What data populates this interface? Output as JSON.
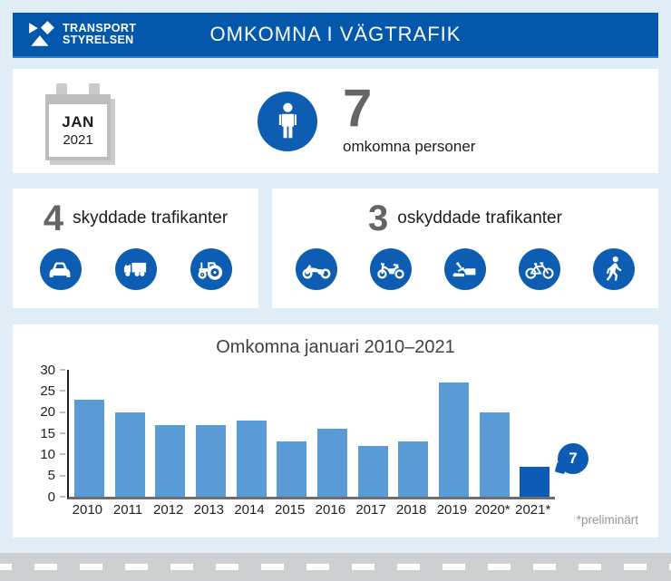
{
  "colors": {
    "brand_blue": "#0458ab",
    "icon_circle_blue": "#0d5eb2",
    "bar_blue": "#5b9bd5",
    "highlight_blue": "#0d5bb5",
    "background_blue": "#e1eef7",
    "road_gray": "#cdd0d0",
    "number_gray": "#636569"
  },
  "header": {
    "logo_line1": "TRANSPORT",
    "logo_line2": "STYRELSEN",
    "logo_icon": "transportstyrelsen-logo-icon",
    "title": "OMKOMNA I VÄGTRAFIK"
  },
  "summary": {
    "calendar_icon": "calendar-icon",
    "calendar_month": "JAN",
    "calendar_year": "2021",
    "person_icon": "person-icon",
    "count": "7",
    "label": "omkomna personer"
  },
  "protected_group": {
    "count": "4",
    "label": "skyddade trafikanter",
    "icons": [
      "car-icon",
      "truck-icon",
      "tractor-icon"
    ]
  },
  "unprotected_group": {
    "count": "3",
    "label": "oskyddade trafikanter",
    "icons": [
      "motorcycle-icon",
      "moped-icon",
      "snowmobile-icon",
      "bicycle-icon",
      "pedestrian-icon"
    ]
  },
  "chart_data": {
    "type": "bar",
    "title": "Omkomna januari 2010–2021",
    "categories": [
      "2010",
      "2011",
      "2012",
      "2013",
      "2014",
      "2015",
      "2016",
      "2017",
      "2018",
      "2019",
      "2020*",
      "2021*"
    ],
    "values": [
      23,
      20,
      17,
      17,
      18,
      13,
      16,
      12,
      13,
      27,
      20,
      7
    ],
    "xlabel": "",
    "ylabel": "",
    "ylim": [
      0,
      30
    ],
    "yticks": [
      0,
      5,
      10,
      15,
      20,
      25,
      30
    ],
    "grid": false,
    "legend_position": "none",
    "bar_color": "#5b9bd5",
    "highlight_index": 11,
    "highlight_color": "#0d5bb5",
    "callout_label": "7",
    "footnote": "*preliminärt"
  }
}
